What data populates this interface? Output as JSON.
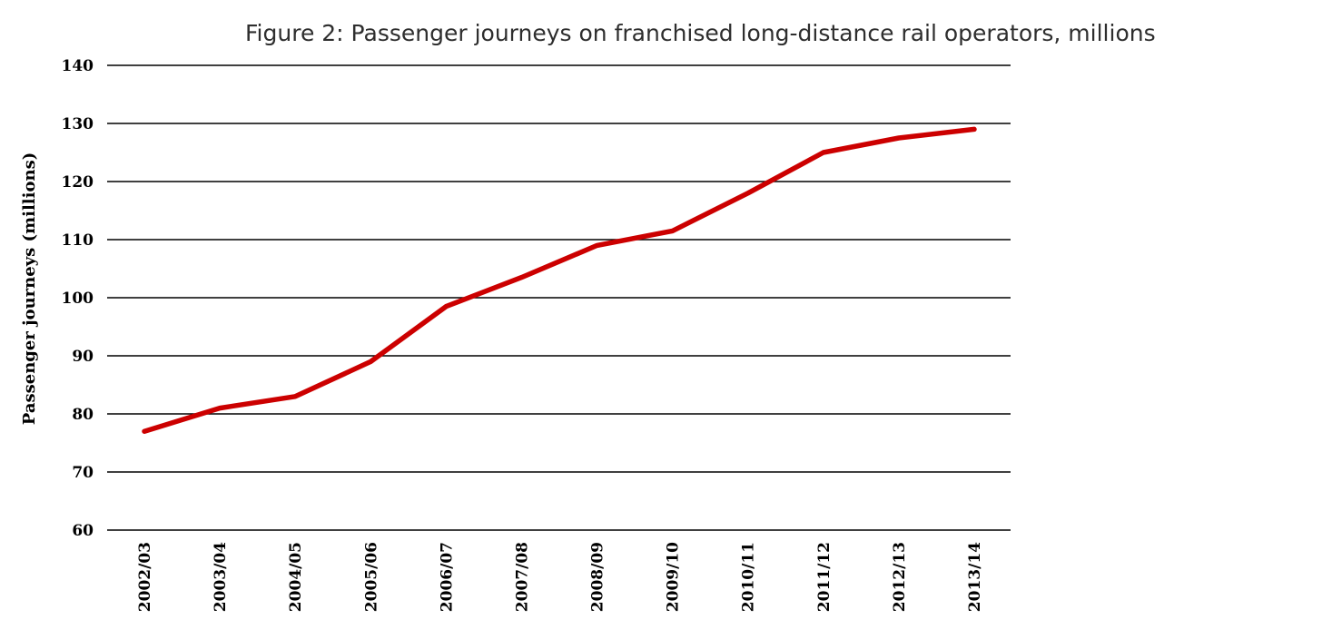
{
  "figure": {
    "title": "Figure 2: Passenger journeys on franchised long-distance rail operators, millions"
  },
  "chart_data": {
    "type": "line",
    "title": "Figure 2: Passenger journeys on franchised long-distance rail operators, millions",
    "xlabel": "",
    "ylabel": "Passenger journeys (millions)",
    "categories": [
      "2002/03",
      "2003/04",
      "2004/05",
      "2005/06",
      "2006/07",
      "2007/08",
      "2008/09",
      "2009/10",
      "2010/11",
      "2011/12",
      "2012/13",
      "2013/14"
    ],
    "series": [
      {
        "values": [
          77,
          81,
          83,
          89,
          98.5,
          103.5,
          109,
          111.5,
          118,
          125,
          127.5,
          129
        ],
        "color": "#cc0000"
      }
    ],
    "ylim": [
      60,
      140
    ],
    "yticks": [
      60,
      70,
      80,
      90,
      100,
      110,
      120,
      130,
      140
    ],
    "grid": true,
    "legend": "none"
  }
}
